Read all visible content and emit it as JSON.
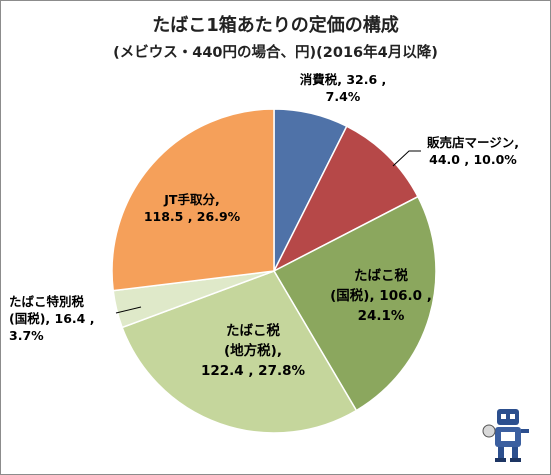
{
  "title_line1": "たばこ1箱あたりの定価の構成",
  "title_line2": "(メビウス・440円の場合、円)(2016年4月以降)",
  "chart_data": {
    "type": "pie",
    "title": "たばこ1箱あたりの定価の構成 (メビウス・440円の場合、円)(2016年4月以降)",
    "unit": "円",
    "total": 440,
    "start_angle_deg": 0,
    "direction": "clockwise",
    "slices": [
      {
        "label": "消費税",
        "value": 32.6,
        "percent": "7.4%",
        "color": "#4f72a8",
        "label_lines": [
          "消費税, 32.6 ,",
          "7.4%"
        ]
      },
      {
        "label": "販売店マージン",
        "value": 44.0,
        "percent": "10.0%",
        "color": "#b64848",
        "label_lines": [
          "販売店マージン,",
          "44.0 , 10.0%"
        ]
      },
      {
        "label": "たばこ税(国税)",
        "value": 106.0,
        "percent": "24.1%",
        "color": "#8ba75e",
        "label_lines": [
          "たばこ税",
          "(国税), 106.0 ,",
          "24.1%"
        ]
      },
      {
        "label": "たばこ税(地方税)",
        "value": 122.4,
        "percent": "27.8%",
        "color": "#c5d69c",
        "label_lines": [
          "たばこ税",
          "(地方税),",
          "122.4 , 27.8%"
        ]
      },
      {
        "label": "たばこ特別税(国税)",
        "value": 16.4,
        "percent": "3.7%",
        "color": "#dfe9c9",
        "label_lines": [
          "たばこ特別税",
          "(国税), 16.4 ,",
          "3.7%"
        ]
      },
      {
        "label": "JT手取分",
        "value": 118.5,
        "percent": "26.9%",
        "color": "#f5a05a",
        "label_lines": [
          "JT手取分,",
          "118.5 , 26.9%"
        ]
      }
    ]
  },
  "icons": {
    "mascot": "robot-mascot-icon"
  }
}
